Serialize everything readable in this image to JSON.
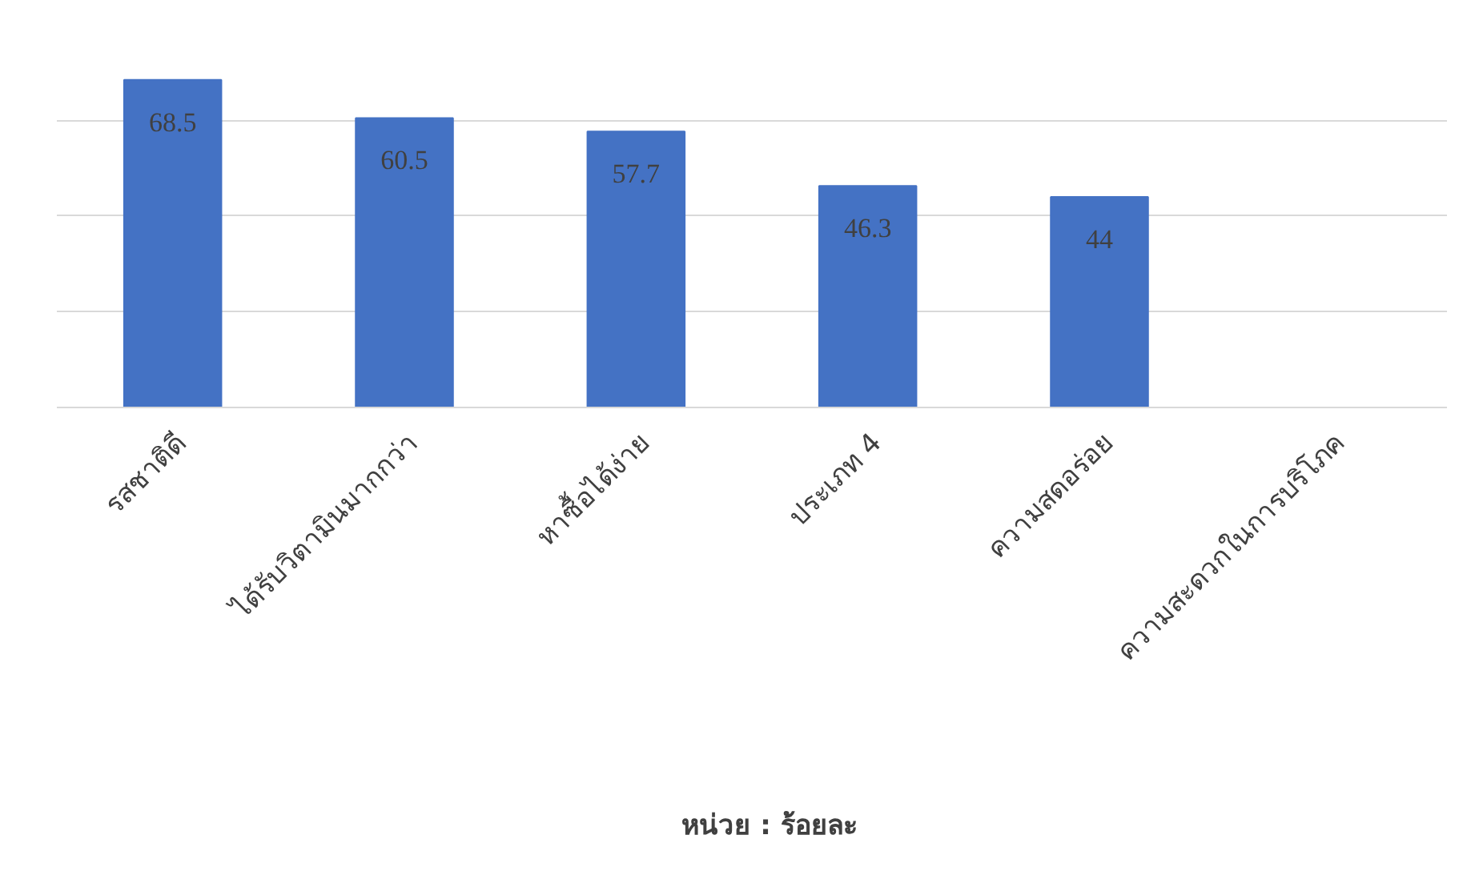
{
  "chart_data": {
    "type": "bar",
    "categories": [
      "รสชาติดี",
      "ได้รับวิตามินมากกว่า",
      "หาซื้อได้ง่าย",
      "ประเภท 4",
      "ความสดอร่อย",
      "ความสะดวกในการบริโภค"
    ],
    "series": [
      {
        "name": "หน่วย : ร้อยละ",
        "color": "#4472c4",
        "values": [
          68.5,
          60.5,
          57.7,
          46.3,
          44,
          null
        ]
      }
    ],
    "tick_labels": "x",
    "grid": "y",
    "legend": "bottom",
    "data_labels": true
  }
}
